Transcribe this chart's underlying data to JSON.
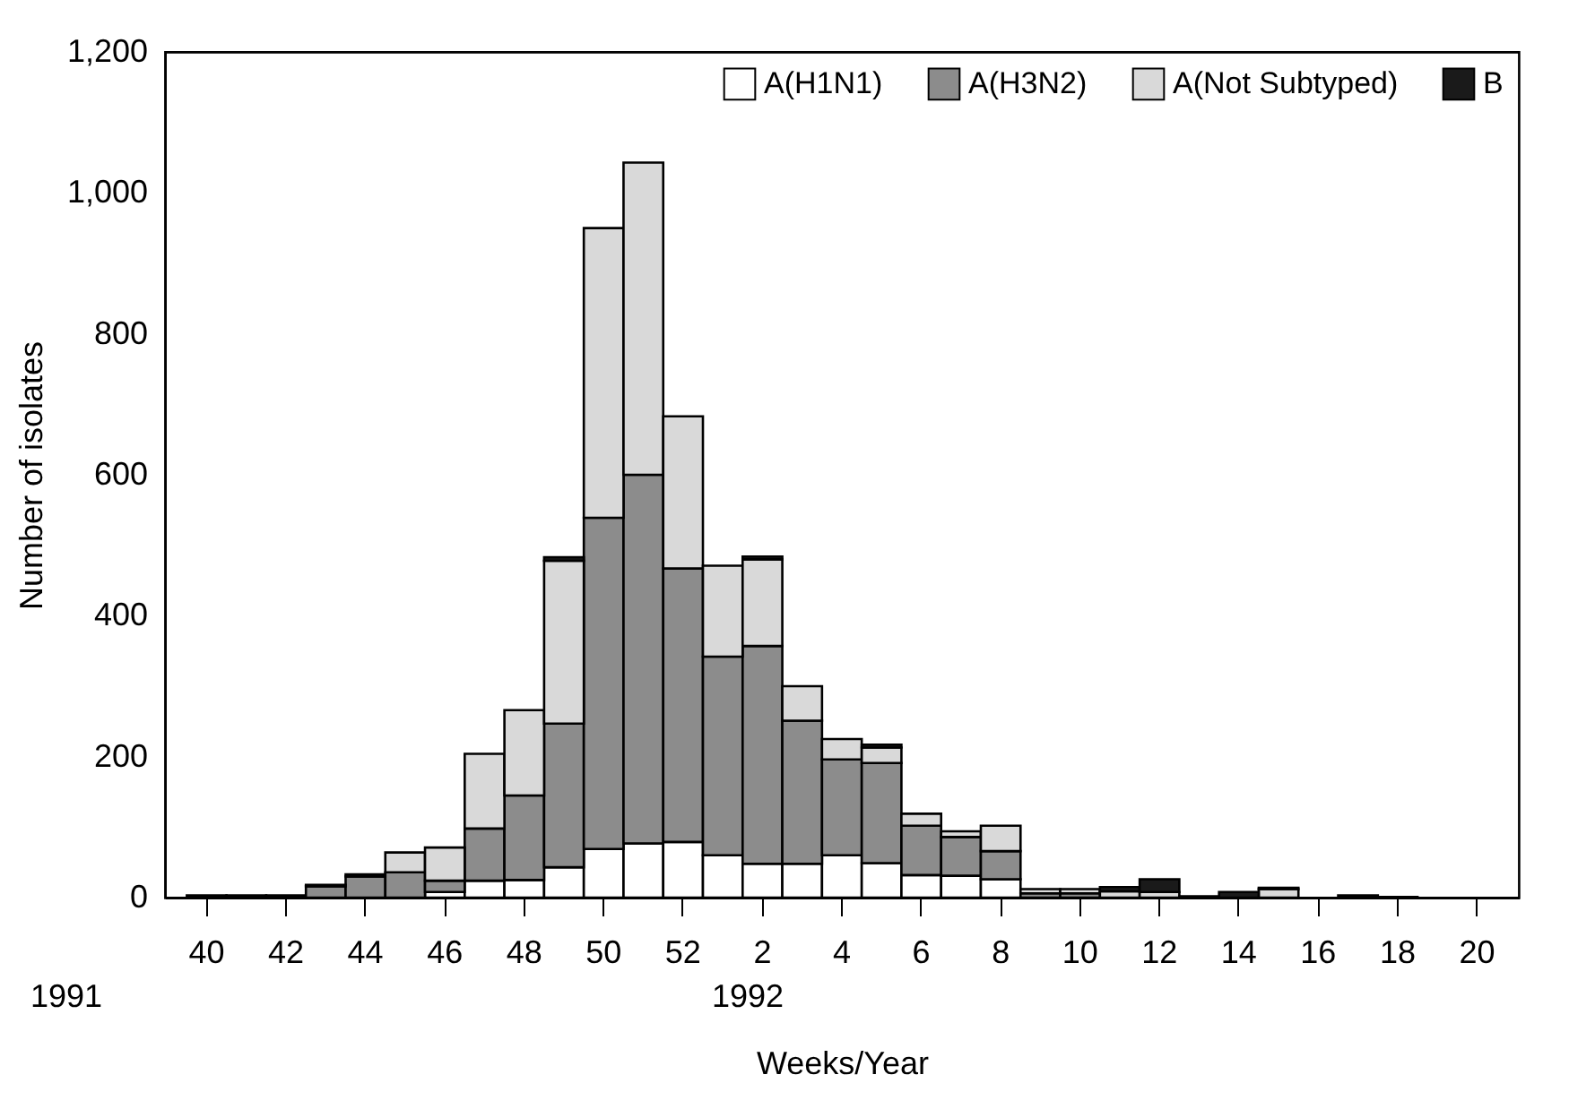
{
  "chart_data": {
    "type": "bar",
    "stacked": true,
    "xlabel": "Weeks/Year",
    "ylabel": "Number of isolates",
    "categories": [
      "40",
      null,
      "42",
      null,
      "44",
      null,
      "46",
      null,
      "48",
      null,
      "50",
      null,
      "52",
      null,
      "2",
      null,
      "4",
      null,
      "6",
      null,
      "8",
      null,
      "10",
      null,
      "12",
      null,
      "14",
      null,
      "16",
      null,
      "18",
      null,
      "20"
    ],
    "series": [
      {
        "name": "A(H1N1)",
        "color": "#ffffff",
        "values": [
          null,
          null,
          null,
          null,
          null,
          null,
          8,
          24,
          25,
          43,
          69,
          77,
          79,
          60,
          48,
          48,
          60,
          49,
          32,
          31,
          26,
          null,
          null,
          null,
          null,
          null,
          null,
          null,
          null,
          null,
          null,
          null,
          null
        ]
      },
      {
        "name": "A(H3N2)",
        "color": "#8c8c8c",
        "values": [
          3,
          3,
          3,
          16,
          30,
          36,
          16,
          74,
          120,
          204,
          470,
          523,
          388,
          282,
          309,
          203,
          136,
          142,
          70,
          55,
          40,
          6,
          6,
          null,
          null,
          null,
          null,
          null,
          null,
          null,
          null,
          null,
          null
        ]
      },
      {
        "name": "A(Not Subtyped)",
        "color": "#d9d9d9",
        "values": [
          null,
          null,
          null,
          null,
          null,
          28,
          47,
          106,
          121,
          231,
          411,
          443,
          216,
          129,
          123,
          49,
          29,
          22,
          17,
          8,
          36,
          6,
          6,
          9,
          8,
          null,
          null,
          12,
          null,
          null,
          null,
          null,
          null
        ]
      },
      {
        "name": "B",
        "color": "#1a1a1a",
        "values": [
          null,
          null,
          null,
          2,
          3,
          null,
          null,
          null,
          null,
          5,
          null,
          null,
          null,
          null,
          4,
          null,
          null,
          4,
          null,
          null,
          null,
          null,
          null,
          6,
          18,
          2,
          8,
          2,
          null,
          3,
          1,
          null,
          null
        ]
      }
    ],
    "ylim": [
      0,
      1200
    ],
    "yticks": [
      0,
      200,
      400,
      600,
      800,
      {
        "value": 1000,
        "label": "1,000"
      },
      {
        "value": 1200,
        "label": "1,200"
      }
    ],
    "grid": false,
    "legend": "top right",
    "annotations": [
      "1991",
      "1992"
    ]
  }
}
